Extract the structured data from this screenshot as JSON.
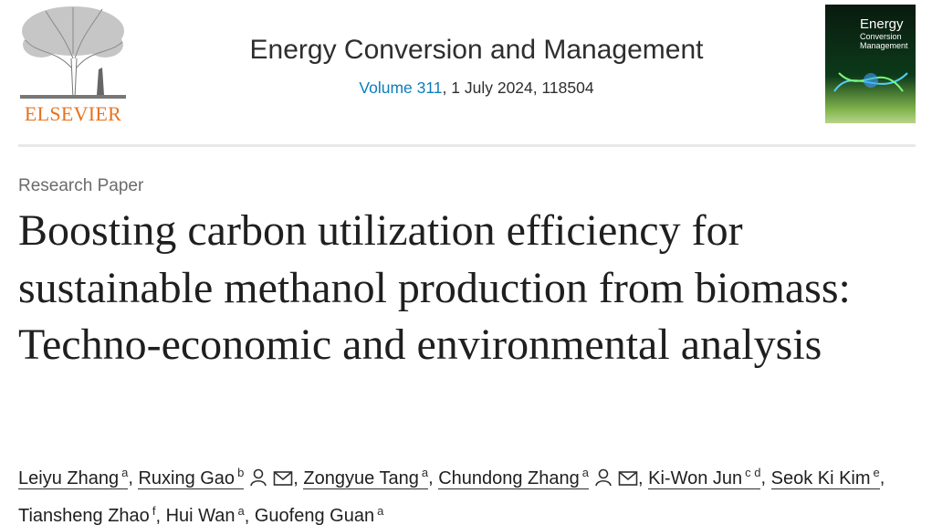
{
  "header": {
    "publisher": "ELSEVIER",
    "journal": "Energy Conversion and Management",
    "volume_link": "Volume 311",
    "issue_info": ", 1 July 2024, 118504",
    "cover": {
      "line1": "Energy",
      "line2": "Conversion",
      "line3": "Management"
    }
  },
  "article": {
    "type": "Research Paper",
    "title": "Boosting carbon utilization efficiency for sustainable methanol production from biomass: Techno-economic and environmental analysis",
    "separator": ",",
    "authors": [
      {
        "name": "Leiyu Zhang",
        "sup": "a"
      },
      {
        "name": "Ruxing Gao",
        "sup": "b",
        "contact": true
      },
      {
        "name": "Zongyue Tang",
        "sup": "a"
      },
      {
        "name": "Chundong Zhang",
        "sup": "a",
        "contact": true
      },
      {
        "name": "Ki-Won Jun",
        "sup": "c d"
      },
      {
        "name": "Seok Ki Kim",
        "sup": "e"
      },
      {
        "name": "Tiansheng Zhao",
        "sup": "f"
      },
      {
        "name": "Hui Wan",
        "sup": "a"
      },
      {
        "name": "Guofeng Guan",
        "sup": "a"
      }
    ]
  }
}
